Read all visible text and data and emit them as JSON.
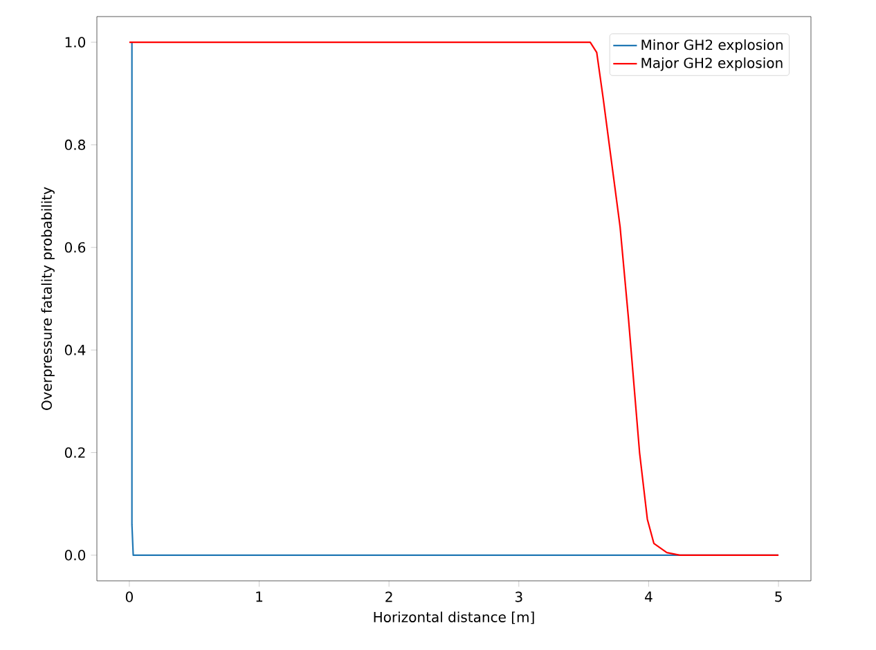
{
  "chart_data": {
    "type": "line",
    "xlabel": "Horizontal distance [m]",
    "ylabel": "Overpressure fatality probability",
    "xlim": [
      -0.25,
      5.25
    ],
    "ylim": [
      -0.05,
      1.05
    ],
    "xticks": [
      0,
      1,
      2,
      3,
      4,
      5
    ],
    "yticks": [
      {
        "value": 0,
        "label": "0.0"
      },
      {
        "value": 0.2,
        "label": "0.2"
      },
      {
        "value": 0.4,
        "label": "0.4"
      },
      {
        "value": 0.6,
        "label": "0.6"
      },
      {
        "value": 0.8,
        "label": "0.8"
      },
      {
        "value": 1,
        "label": "1.0"
      }
    ],
    "legend": "top right",
    "grid": false,
    "series": [
      {
        "name": "Minor GH2 explosion",
        "color": "#1f77b4",
        "x": [
          0.02,
          0.02,
          0.03,
          5
        ],
        "values": [
          1,
          0.06,
          0,
          0
        ]
      },
      {
        "name": "Major GH2 explosion",
        "color": "#ff0000",
        "x": [
          0,
          3.55,
          3.6,
          3.65,
          3.78,
          3.845,
          3.93,
          3.99,
          4.04,
          4.14,
          4.24,
          5
        ],
        "values": [
          1,
          1,
          0.98,
          0.89,
          0.64,
          0.46,
          0.2,
          0.07,
          0.023,
          0.005,
          0,
          0
        ]
      }
    ]
  }
}
